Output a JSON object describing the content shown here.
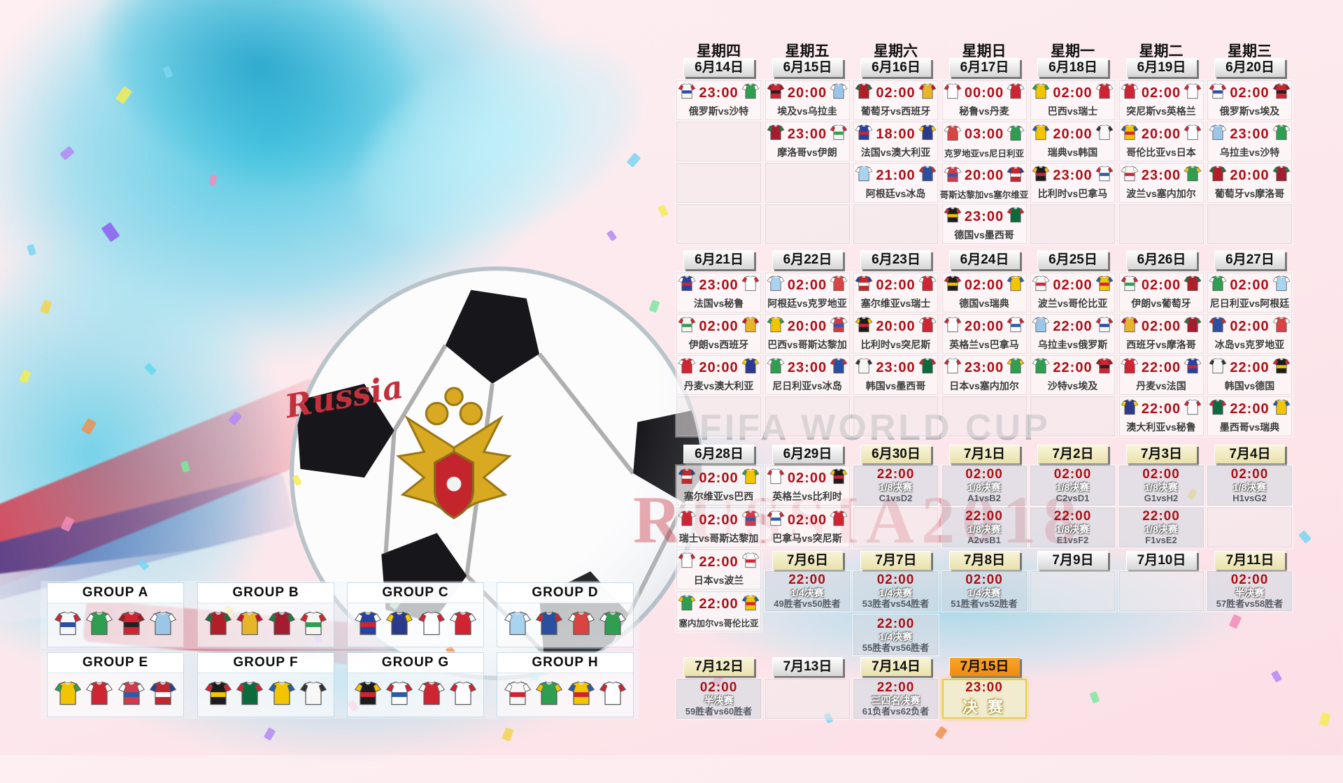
{
  "watermark": {
    "line1": "FIFA WORLD CUP",
    "line2": "RUSSIA2018"
  },
  "ball": {
    "script": "Russia"
  },
  "calendar": {
    "weekdays": [
      "星期四",
      "星期五",
      "星期六",
      "星期日",
      "星期一",
      "星期二",
      "星期三"
    ],
    "week1": {
      "dates": [
        {
          "label": "6月14日",
          "style": "plain"
        },
        {
          "label": "6月15日",
          "style": "plain"
        },
        {
          "label": "6月16日",
          "style": "plain"
        },
        {
          "label": "6月17日",
          "style": "plain"
        },
        {
          "label": "6月18日",
          "style": "plain"
        },
        {
          "label": "6月19日",
          "style": "plain"
        },
        {
          "label": "6月20日",
          "style": "plain"
        }
      ],
      "rows": [
        [
          {
            "type": "m",
            "t": "23:00",
            "h": "俄罗斯",
            "a": "沙特"
          },
          {
            "type": "m",
            "t": "20:00",
            "h": "埃及",
            "a": "乌拉圭"
          },
          {
            "type": "m",
            "t": "02:00",
            "h": "葡萄牙",
            "a": "西班牙"
          },
          {
            "type": "m",
            "t": "00:00",
            "h": "秘鲁",
            "a": "丹麦"
          },
          {
            "type": "m",
            "t": "02:00",
            "h": "巴西",
            "a": "瑞士"
          },
          {
            "type": "m",
            "t": "02:00",
            "h": "突尼斯",
            "a": "英格兰"
          },
          {
            "type": "m",
            "t": "02:00",
            "h": "俄罗斯",
            "a": "埃及"
          }
        ],
        [
          {
            "type": "empty"
          },
          {
            "type": "m",
            "t": "23:00",
            "h": "摩洛哥",
            "a": "伊朗"
          },
          {
            "type": "m",
            "t": "18:00",
            "h": "法国",
            "a": "澳大利亚"
          },
          {
            "type": "m",
            "t": "03:00",
            "h": "克罗地亚",
            "a": "尼日利亚"
          },
          {
            "type": "m",
            "t": "20:00",
            "h": "瑞典",
            "a": "韩国"
          },
          {
            "type": "m",
            "t": "20:00",
            "h": "哥伦比亚",
            "a": "日本"
          },
          {
            "type": "m",
            "t": "23:00",
            "h": "乌拉圭",
            "a": "沙特"
          }
        ],
        [
          {
            "type": "empty"
          },
          {
            "type": "empty"
          },
          {
            "type": "m",
            "t": "21:00",
            "h": "阿根廷",
            "a": "冰岛"
          },
          {
            "type": "m",
            "t": "20:00",
            "h": "哥斯达黎加",
            "a": "塞尔维亚"
          },
          {
            "type": "m",
            "t": "23:00",
            "h": "比利时",
            "a": "巴拿马"
          },
          {
            "type": "m",
            "t": "23:00",
            "h": "波兰",
            "a": "塞内加尔"
          },
          {
            "type": "m",
            "t": "20:00",
            "h": "葡萄牙",
            "a": "摩洛哥"
          }
        ],
        [
          {
            "type": "empty"
          },
          {
            "type": "empty"
          },
          {
            "type": "empty"
          },
          {
            "type": "m",
            "t": "23:00",
            "h": "德国",
            "a": "墨西哥"
          },
          {
            "type": "empty"
          },
          {
            "type": "empty"
          },
          {
            "type": "empty"
          }
        ]
      ]
    },
    "week2": {
      "dates": [
        {
          "label": "6月21日",
          "style": "plain"
        },
        {
          "label": "6月22日",
          "style": "plain"
        },
        {
          "label": "6月23日",
          "style": "plain"
        },
        {
          "label": "6月24日",
          "style": "plain"
        },
        {
          "label": "6月25日",
          "style": "plain"
        },
        {
          "label": "6月26日",
          "style": "plain"
        },
        {
          "label": "6月27日",
          "style": "plain"
        }
      ],
      "rows": [
        [
          {
            "type": "m",
            "t": "23:00",
            "h": "法国",
            "a": "秘鲁"
          },
          {
            "type": "m",
            "t": "02:00",
            "h": "阿根廷",
            "a": "克罗地亚"
          },
          {
            "type": "m",
            "t": "02:00",
            "h": "塞尔维亚",
            "a": "瑞士"
          },
          {
            "type": "m",
            "t": "02:00",
            "h": "德国",
            "a": "瑞典"
          },
          {
            "type": "m",
            "t": "02:00",
            "h": "波兰",
            "a": "哥伦比亚"
          },
          {
            "type": "m",
            "t": "02:00",
            "h": "伊朗",
            "a": "葡萄牙"
          },
          {
            "type": "m",
            "t": "02:00",
            "h": "尼日利亚",
            "a": "阿根廷"
          }
        ],
        [
          {
            "type": "m",
            "t": "02:00",
            "h": "伊朗",
            "a": "西班牙"
          },
          {
            "type": "m",
            "t": "20:00",
            "h": "巴西",
            "a": "哥斯达黎加"
          },
          {
            "type": "m",
            "t": "20:00",
            "h": "比利时",
            "a": "突尼斯"
          },
          {
            "type": "m",
            "t": "20:00",
            "h": "英格兰",
            "a": "巴拿马"
          },
          {
            "type": "m",
            "t": "22:00",
            "h": "乌拉圭",
            "a": "俄罗斯"
          },
          {
            "type": "m",
            "t": "02:00",
            "h": "西班牙",
            "a": "摩洛哥"
          },
          {
            "type": "m",
            "t": "02:00",
            "h": "冰岛",
            "a": "克罗地亚"
          }
        ],
        [
          {
            "type": "m",
            "t": "20:00",
            "h": "丹麦",
            "a": "澳大利亚"
          },
          {
            "type": "m",
            "t": "23:00",
            "h": "尼日利亚",
            "a": "冰岛"
          },
          {
            "type": "m",
            "t": "23:00",
            "h": "韩国",
            "a": "墨西哥"
          },
          {
            "type": "m",
            "t": "23:00",
            "h": "日本",
            "a": "塞内加尔"
          },
          {
            "type": "m",
            "t": "22:00",
            "h": "沙特",
            "a": "埃及"
          },
          {
            "type": "m",
            "t": "22:00",
            "h": "丹麦",
            "a": "法国"
          },
          {
            "type": "m",
            "t": "22:00",
            "h": "韩国",
            "a": "德国"
          }
        ],
        [
          {
            "type": "empty"
          },
          {
            "type": "empty"
          },
          {
            "type": "empty"
          },
          {
            "type": "empty"
          },
          {
            "type": "empty"
          },
          {
            "type": "m",
            "t": "22:00",
            "h": "澳大利亚",
            "a": "秘鲁"
          },
          {
            "type": "m",
            "t": "22:00",
            "h": "墨西哥",
            "a": "瑞典"
          }
        ]
      ]
    },
    "week3": {
      "dates": [
        {
          "label": "6月28日",
          "style": "plain"
        },
        {
          "label": "6月29日",
          "style": "plain"
        },
        {
          "label": "6月30日",
          "style": "yellow"
        },
        {
          "label": "7月1日",
          "style": "yellow"
        },
        {
          "label": "7月2日",
          "style": "yellow"
        },
        {
          "label": "7月3日",
          "style": "yellow"
        },
        {
          "label": "7月4日",
          "style": "yellow"
        }
      ],
      "rows": [
        [
          {
            "type": "m",
            "t": "02:00",
            "h": "塞尔维亚",
            "a": "巴西"
          },
          {
            "type": "m",
            "t": "02:00",
            "h": "英格兰",
            "a": "比利时"
          },
          {
            "type": "ko",
            "t": "22:00",
            "stage": "1/8决赛",
            "match": "C1vsD2"
          },
          {
            "type": "ko",
            "t": "02:00",
            "stage": "1/8决赛",
            "match": "A1vsB2"
          },
          {
            "type": "ko",
            "t": "02:00",
            "stage": "1/8决赛",
            "match": "C2vsD1"
          },
          {
            "type": "ko",
            "t": "02:00",
            "stage": "1/8决赛",
            "match": "G1vsH2"
          },
          {
            "type": "ko",
            "t": "02:00",
            "stage": "1/8决赛",
            "match": "H1vsG2"
          }
        ],
        [
          {
            "type": "m",
            "t": "02:00",
            "h": "瑞士",
            "a": "哥斯达黎加"
          },
          {
            "type": "m",
            "t": "02:00",
            "h": "巴拿马",
            "a": "突尼斯"
          },
          {
            "type": "empty"
          },
          {
            "type": "ko",
            "t": "22:00",
            "stage": "1/8决赛",
            "match": "A2vsB1"
          },
          {
            "type": "ko",
            "t": "22:00",
            "stage": "1/8决赛",
            "match": "E1vsF2"
          },
          {
            "type": "ko",
            "t": "22:00",
            "stage": "1/8决赛",
            "match": "F1vsE2"
          },
          {
            "type": "empty"
          }
        ]
      ]
    },
    "week3_col1_extra": [
      {
        "type": "m",
        "t": "22:00",
        "h": "日本",
        "a": "波兰"
      },
      {
        "type": "m",
        "t": "22:00",
        "h": "塞内加尔",
        "a": "哥伦比亚"
      }
    ],
    "week4": {
      "dates": [
        {
          "label": "7月6日",
          "style": "yellow"
        },
        {
          "label": "7月7日",
          "style": "yellow"
        },
        {
          "label": "7月8日",
          "style": "yellow"
        },
        {
          "label": "7月9日",
          "style": "plain"
        },
        {
          "label": "7月10日",
          "style": "plain"
        },
        {
          "label": "7月11日",
          "style": "yellow"
        }
      ],
      "row1": [
        {
          "type": "ko",
          "t": "22:00",
          "stage": "1/4决赛",
          "match": "49胜者vs50胜者"
        },
        {
          "type": "ko",
          "t": "02:00",
          "stage": "1/4决赛",
          "match": "53胜者vs54胜者"
        },
        {
          "type": "ko",
          "t": "02:00",
          "stage": "1/4决赛",
          "match": "51胜者vs52胜者"
        },
        {
          "type": "empty"
        },
        {
          "type": "empty"
        },
        {
          "type": "ko",
          "t": "02:00",
          "stage": "半决赛",
          "match": "57胜者vs58胜者"
        }
      ],
      "row2_col3": {
        "type": "ko",
        "t": "22:00",
        "stage": "1/4决赛",
        "match": "55胜者vs56胜者"
      }
    },
    "week5": {
      "dates": [
        {
          "label": "7月12日",
          "style": "yellow"
        },
        {
          "label": "7月13日",
          "style": "plain"
        },
        {
          "label": "7月14日",
          "style": "yellow"
        },
        {
          "label": "7月15日",
          "style": "orange"
        }
      ],
      "row": [
        {
          "type": "ko",
          "t": "02:00",
          "stage": "半决赛",
          "match": "59胜者vs60胜者"
        },
        {
          "type": "empty"
        },
        {
          "type": "ko",
          "t": "22:00",
          "stage": "三四名决赛",
          "match": "61负者vs62负者"
        },
        {
          "type": "final",
          "t": "23:00",
          "label": "决 赛"
        }
      ]
    }
  },
  "groups": [
    {
      "name": "GROUP A",
      "teams": [
        "俄罗斯",
        "沙特",
        "埃及",
        "乌拉圭"
      ]
    },
    {
      "name": "GROUP B",
      "teams": [
        "葡萄牙",
        "西班牙",
        "摩洛哥",
        "伊朗"
      ]
    },
    {
      "name": "GROUP C",
      "teams": [
        "法国",
        "澳大利亚",
        "秘鲁",
        "丹麦"
      ]
    },
    {
      "name": "GROUP D",
      "teams": [
        "阿根廷",
        "冰岛",
        "克罗地亚",
        "尼日利亚"
      ]
    },
    {
      "name": "GROUP E",
      "teams": [
        "巴西",
        "瑞士",
        "哥斯达黎加",
        "塞尔维亚"
      ]
    },
    {
      "name": "GROUP F",
      "teams": [
        "德国",
        "墨西哥",
        "瑞典",
        "韩国"
      ]
    },
    {
      "name": "GROUP G",
      "teams": [
        "比利时",
        "巴拿马",
        "突尼斯",
        "英格兰"
      ]
    },
    {
      "name": "GROUP H",
      "teams": [
        "波兰",
        "塞内加尔",
        "哥伦比亚",
        "日本"
      ]
    }
  ],
  "team_colors": {
    "俄罗斯": [
      "#f6f7fb",
      "#cf2533",
      "#2b4ea3"
    ],
    "沙特": [
      "#2f9e51",
      "#ffffff"
    ],
    "埃及": [
      "#cf2533",
      "#a01820",
      "#222222"
    ],
    "乌拉圭": [
      "#9cc6e8",
      "#ffffff"
    ],
    "摩洛哥": [
      "#a31d30",
      "#1f7a3d"
    ],
    "伊朗": [
      "#f5f6f2",
      "#cf2533",
      "#2f9e51"
    ],
    "葡萄牙": [
      "#b01e28",
      "#1f6b3e"
    ],
    "西班牙": [
      "#e8b429",
      "#c8102e"
    ],
    "法国": [
      "#2743a0",
      "#ffffff",
      "#cf2533"
    ],
    "澳大利亚": [
      "#2b3a8c",
      "#ffcd00"
    ],
    "秘鲁": [
      "#ffffff",
      "#cf2533"
    ],
    "丹麦": [
      "#cf2533",
      "#ffffff"
    ],
    "克罗地亚": [
      "#d84444",
      "#ffffff"
    ],
    "尼日利亚": [
      "#2f9e51",
      "#ffffff"
    ],
    "瑞典": [
      "#f2c500",
      "#2a5caa"
    ],
    "韩国": [
      "#f7f7f7",
      "#333333"
    ],
    "哥伦比亚": [
      "#f2c500",
      "#2a5caa",
      "#cf2533"
    ],
    "日本": [
      "#ffffff",
      "#cf2533"
    ],
    "波兰": [
      "#f7f7f7",
      "#ffffff",
      "#cf2533"
    ],
    "塞内加尔": [
      "#2f9e51",
      "#f2c500"
    ],
    "德国": [
      "#1c1c1c",
      "#cf2533",
      "#f2c500"
    ],
    "墨西哥": [
      "#0c6b3c",
      "#cf2533"
    ],
    "巴西": [
      "#f2c500",
      "#2f9e51"
    ],
    "瑞士": [
      "#cf2533",
      "#ffffff"
    ],
    "哥斯达黎加": [
      "#d03a4a",
      "#ffffff",
      "#2a5caa"
    ],
    "塞尔维亚": [
      "#c1272d",
      "#2a3f8f",
      "#ffffff"
    ],
    "比利时": [
      "#1c1c1c",
      "#f2c500",
      "#cf2533"
    ],
    "巴拿马": [
      "#ffffff",
      "#cf2533",
      "#2a5caa"
    ],
    "突尼斯": [
      "#cf2533",
      "#ffffff"
    ],
    "英格兰": [
      "#ffffff",
      "#cf2533"
    ],
    "阿根廷": [
      "#a8d4f0",
      "#ffffff"
    ],
    "冰岛": [
      "#2a4f9e",
      "#cf2533"
    ]
  }
}
